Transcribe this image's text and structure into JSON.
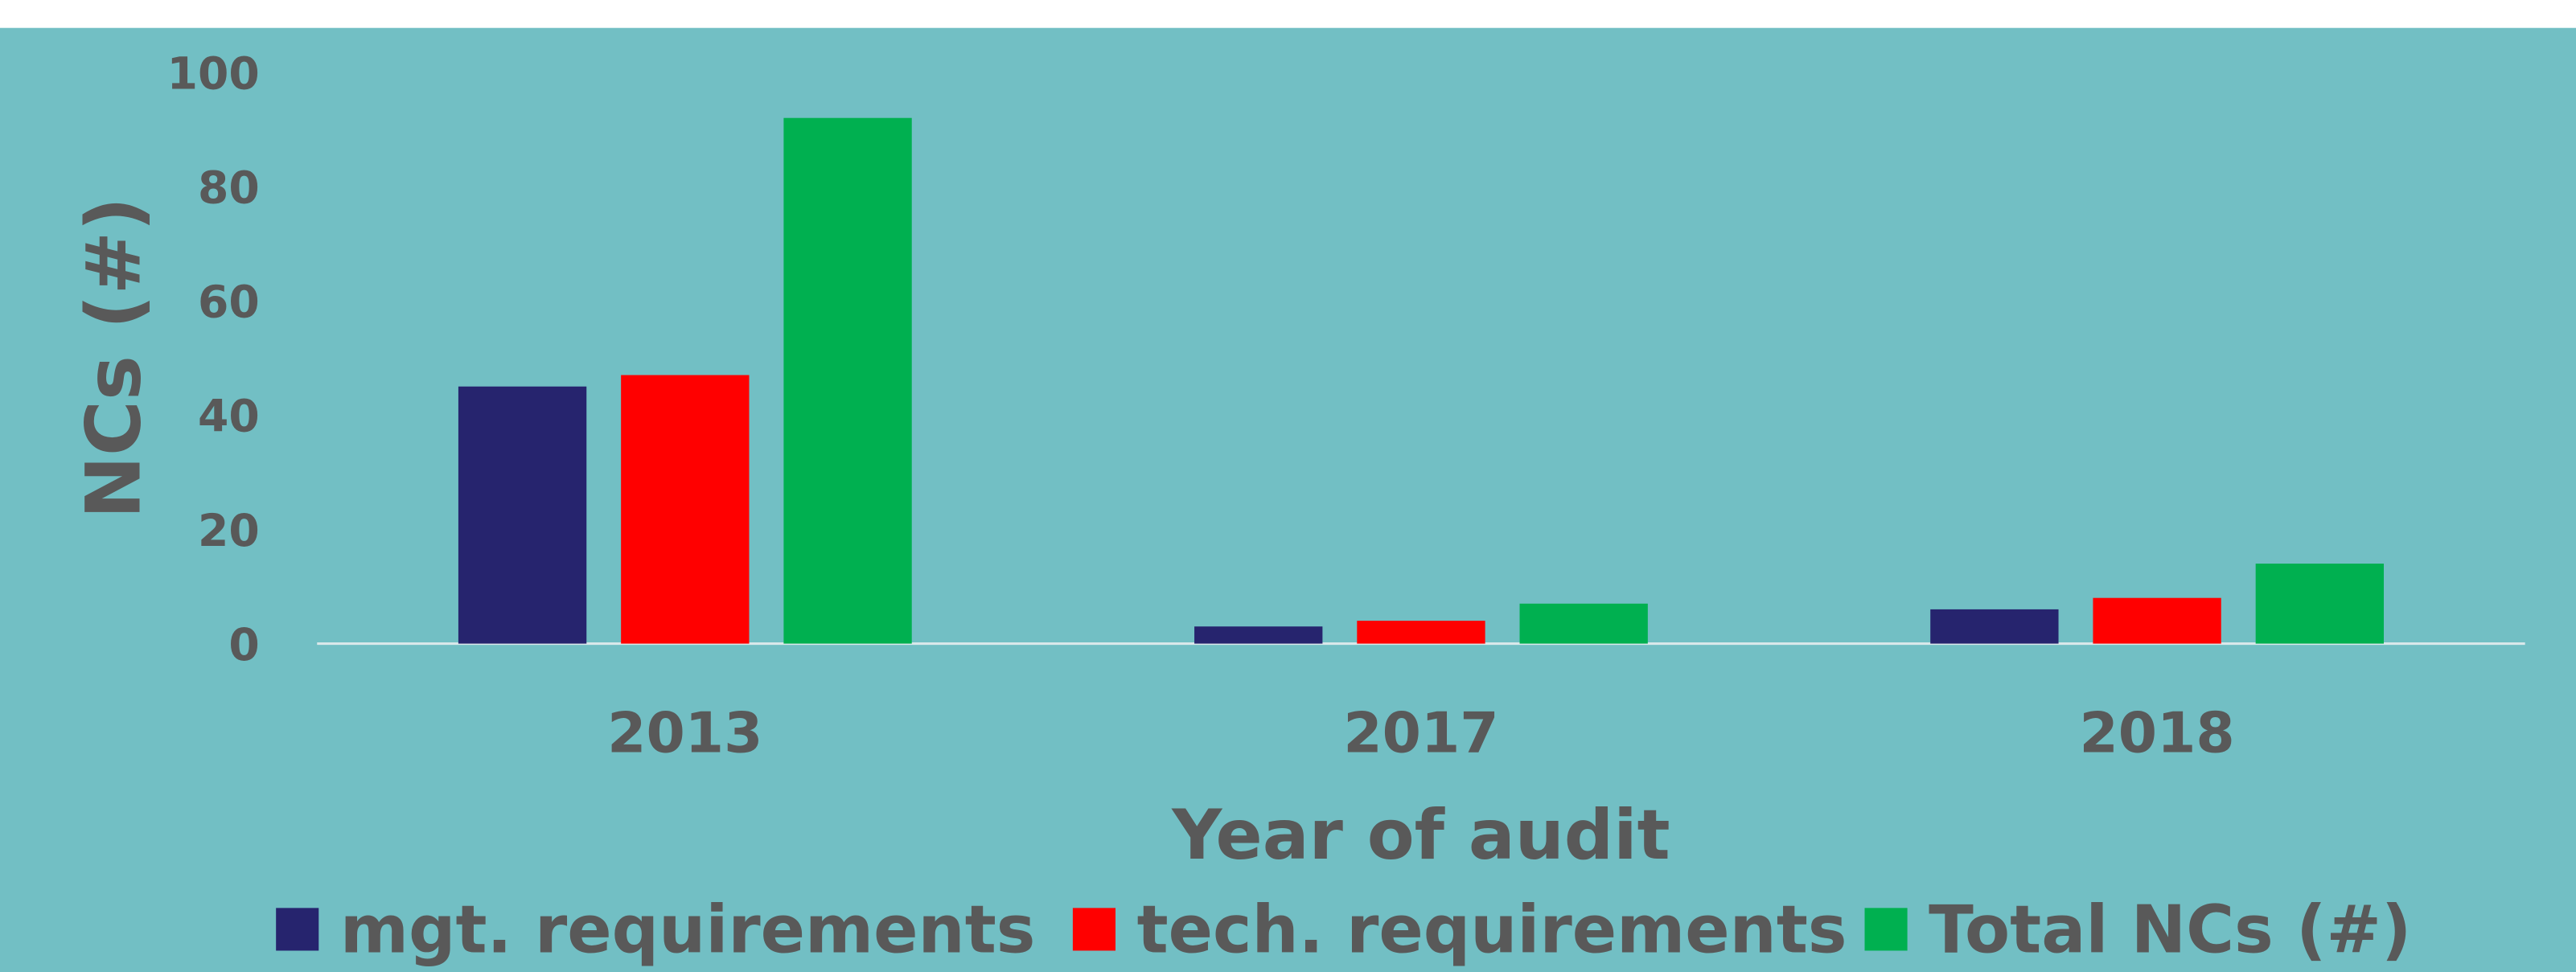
{
  "chart_data": {
    "type": "bar",
    "xlabel": "Year of audit",
    "ylabel": "NCs (#)",
    "categories": [
      "2013",
      "2017",
      "2018"
    ],
    "series": [
      {
        "name": "mgt. requirements",
        "color": "#26246E",
        "values": [
          45,
          3,
          6
        ]
      },
      {
        "name": "tech. requirements",
        "color": "#FF0000",
        "values": [
          47,
          4,
          8
        ]
      },
      {
        "name": "Total NCs (#)",
        "color": "#00B050",
        "values": [
          92,
          7,
          14
        ]
      }
    ],
    "ylim": [
      0,
      100
    ],
    "yticks": [
      0,
      20,
      40,
      60,
      80,
      100
    ],
    "grid": false,
    "legend": "bottom",
    "background": "#72BFC4"
  }
}
